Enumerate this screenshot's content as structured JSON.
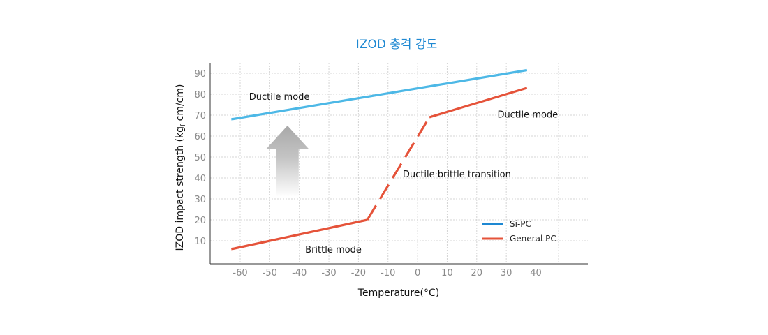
{
  "chart_data": {
    "type": "line",
    "title": "IZOD 충격 강도",
    "xlabel": "Temperature(°C)",
    "ylabel_main": "IZOD impact strength (kg",
    "ylabel_sub": "f",
    "ylabel_tail": " cm/cm)",
    "xlim": [
      -70,
      55
    ],
    "ylim": [
      0,
      95
    ],
    "x_ticks": [
      -60,
      -50,
      -40,
      -30,
      -20,
      -10,
      0,
      10,
      20,
      30,
      40
    ],
    "x_tick_labels": [
      "-60",
      "-50",
      "-40",
      "-30",
      "-20",
      "-10",
      "0",
      "10",
      "20",
      "30",
      "40"
    ],
    "y_ticks": [
      10,
      20,
      30,
      40,
      50,
      60,
      70,
      80,
      90
    ],
    "y_tick_labels": [
      "10",
      "20",
      "30",
      "40",
      "50",
      "60",
      "70",
      "80",
      "90"
    ],
    "grid": true,
    "legend_position": "bottom-right",
    "series": [
      {
        "name": "Si-PC",
        "color": "#4db8e6",
        "segments": [
          {
            "style": "solid",
            "x": [
              -63,
              37
            ],
            "y": [
              68,
              91.5
            ]
          }
        ]
      },
      {
        "name": "General PC",
        "color": "#e5533a",
        "segments": [
          {
            "style": "solid",
            "x": [
              -63,
              -17
            ],
            "y": [
              6,
              20
            ]
          },
          {
            "style": "dashed",
            "x": [
              -17,
              4
            ],
            "y": [
              20,
              69
            ]
          },
          {
            "style": "solid",
            "x": [
              4,
              37
            ],
            "y": [
              69,
              83
            ]
          }
        ]
      }
    ],
    "annotations": [
      {
        "text": "Ductile mode",
        "x": -57,
        "y": 79
      },
      {
        "text": "Ductile mode",
        "x": 27,
        "y": 70.5
      },
      {
        "text": "Ductile·brittle transition",
        "x": -5,
        "y": 42
      },
      {
        "text": "Brittle mode",
        "x": -38,
        "y": 6
      }
    ],
    "arrow": {
      "direction": "up",
      "x": -44,
      "y_from": 31,
      "y_to": 65,
      "color": "#b8b8b8"
    }
  }
}
